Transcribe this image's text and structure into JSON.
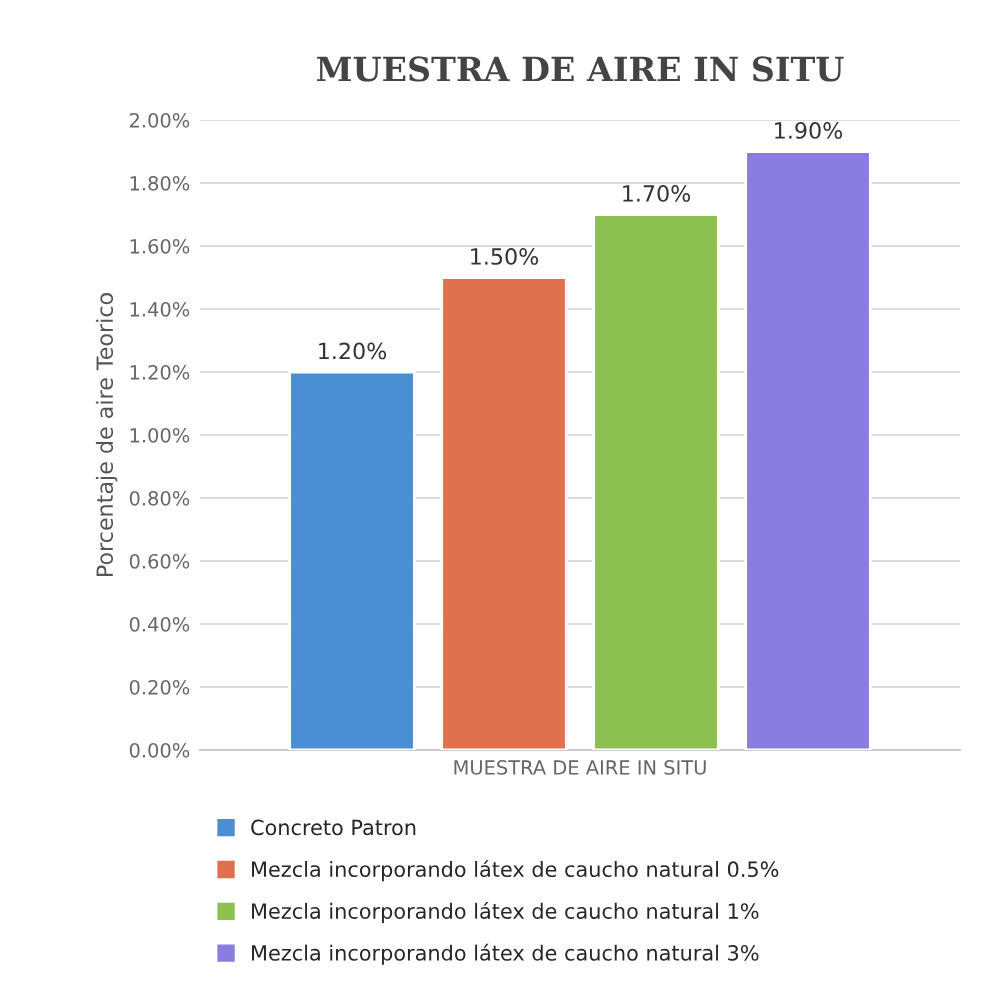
{
  "chart_data": {
    "type": "bar",
    "title": "MUESTRA DE AIRE IN SITU",
    "ylabel": "Porcentaje de aire Teorico",
    "categories": [
      "MUESTRA DE AIRE IN SITU"
    ],
    "series": [
      {
        "name": "Concreto Patron",
        "color": "#4a8fd4",
        "values": [
          1.2
        ],
        "value_labels": [
          "1.20%"
        ]
      },
      {
        "name": "Mezcla incorporando látex de caucho natural 0.5%",
        "color": "#e0714f",
        "values": [
          1.5
        ],
        "value_labels": [
          "1.50%"
        ]
      },
      {
        "name": "Mezcla incorporando látex de caucho natural 1%",
        "color": "#8cc152",
        "values": [
          1.7
        ],
        "value_labels": [
          "1.70%"
        ]
      },
      {
        "name": "Mezcla incorporando látex de caucho natural 3%",
        "color": "#8a7de0",
        "values": [
          1.9
        ],
        "value_labels": [
          "1.90%"
        ]
      }
    ],
    "ylim": [
      0,
      2
    ],
    "yticks": [
      {
        "value": 0,
        "label": "0.00%"
      },
      {
        "value": 0.2,
        "label": "0.20%"
      },
      {
        "value": 0.4,
        "label": "0.40%"
      },
      {
        "value": 0.6,
        "label": "0.60%"
      },
      {
        "value": 0.8,
        "label": "0.80%"
      },
      {
        "value": 1.0,
        "label": "1.00%"
      },
      {
        "value": 1.2,
        "label": "1.20%"
      },
      {
        "value": 1.4,
        "label": "1.40%"
      },
      {
        "value": 1.6,
        "label": "1.60%"
      },
      {
        "value": 1.8,
        "label": "1.80%"
      },
      {
        "value": 2.0,
        "label": "2.00%"
      }
    ],
    "grid": "y",
    "legend": "bottom"
  }
}
